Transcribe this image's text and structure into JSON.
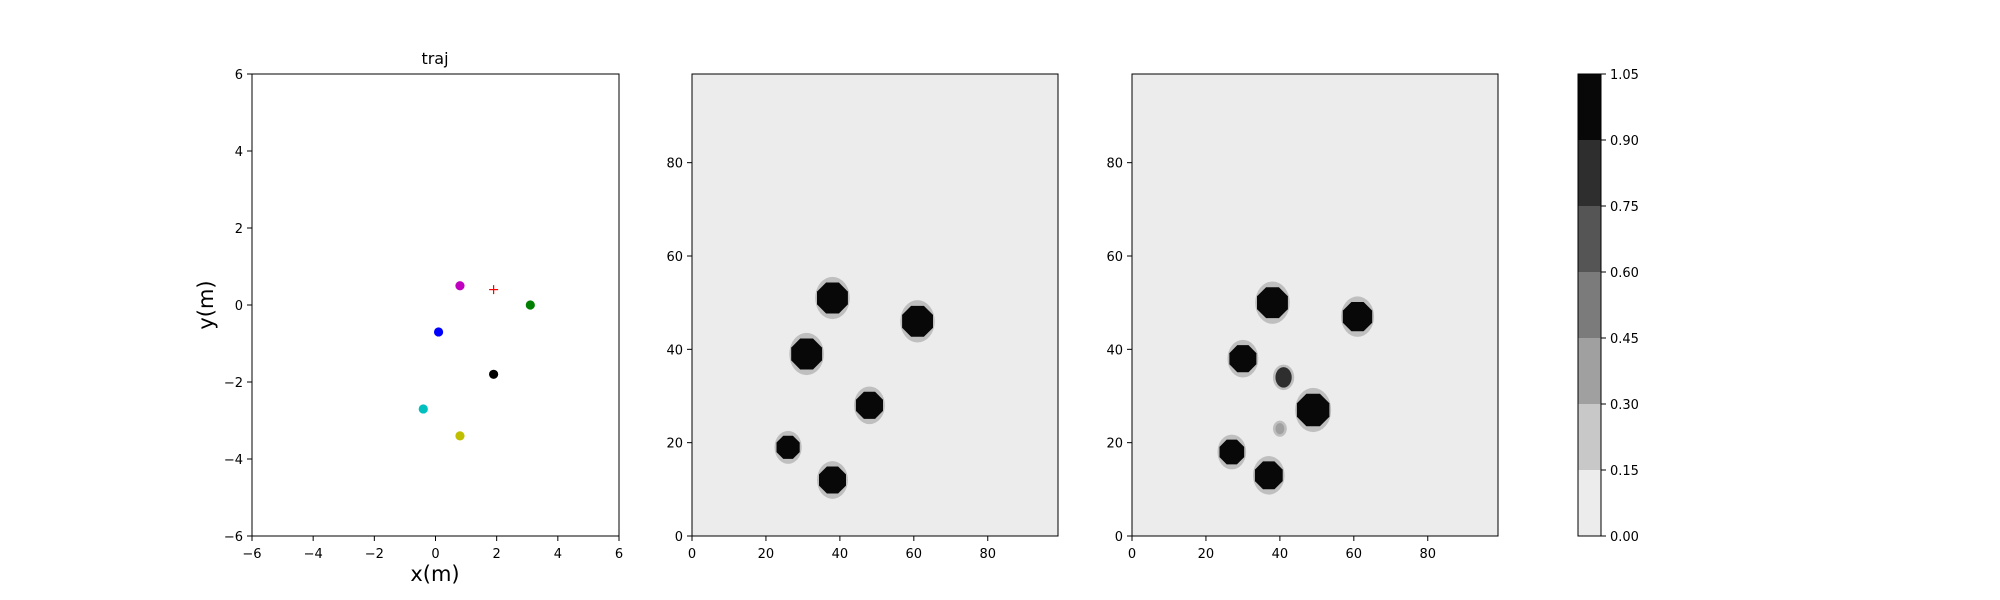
{
  "chart_data": [
    {
      "type": "scatter",
      "title": "traj",
      "xlabel": "x(m)",
      "ylabel": "y(m)",
      "xlim": [
        -6,
        6
      ],
      "ylim": [
        -6,
        6
      ],
      "xticks": [
        -6,
        -4,
        -2,
        0,
        2,
        4,
        6
      ],
      "yticks": [
        -6,
        -4,
        -2,
        0,
        2,
        4,
        6
      ],
      "grid": false,
      "points": [
        {
          "x": 0.8,
          "y": 0.5,
          "color": "#bf00bf",
          "marker": "circle"
        },
        {
          "x": 1.9,
          "y": 0.4,
          "color": "#ff0000",
          "marker": "plus"
        },
        {
          "x": 3.1,
          "y": 0.0,
          "color": "#007f00",
          "marker": "circle"
        },
        {
          "x": 0.1,
          "y": -0.7,
          "color": "#0000ff",
          "marker": "circle"
        },
        {
          "x": 1.9,
          "y": -1.8,
          "color": "#000000",
          "marker": "circle"
        },
        {
          "x": -0.4,
          "y": -2.7,
          "color": "#00bfbf",
          "marker": "circle"
        },
        {
          "x": 0.8,
          "y": -3.4,
          "color": "#bfbf00",
          "marker": "circle"
        }
      ]
    },
    {
      "type": "heatmap",
      "xlim": [
        0,
        99
      ],
      "ylim": [
        0,
        99
      ],
      "xticks": [
        0,
        20,
        40,
        60,
        80
      ],
      "yticks": [
        0,
        20,
        40,
        60,
        80
      ],
      "background_value": 0.0,
      "blobs": [
        {
          "x": 38,
          "y": 51,
          "r": 4.0,
          "value": 1.0
        },
        {
          "x": 61,
          "y": 46,
          "r": 4.0,
          "value": 1.0
        },
        {
          "x": 31,
          "y": 39,
          "r": 4.0,
          "value": 1.0
        },
        {
          "x": 48,
          "y": 28,
          "r": 3.5,
          "value": 1.0
        },
        {
          "x": 26,
          "y": 19,
          "r": 3.0,
          "value": 1.0
        },
        {
          "x": 38,
          "y": 12,
          "r": 3.5,
          "value": 1.0
        }
      ]
    },
    {
      "type": "heatmap",
      "xlim": [
        0,
        99
      ],
      "ylim": [
        0,
        99
      ],
      "xticks": [
        0,
        20,
        40,
        60,
        80
      ],
      "yticks": [
        0,
        20,
        40,
        60,
        80
      ],
      "background_value": 0.0,
      "blobs": [
        {
          "x": 38,
          "y": 50,
          "r": 4.0,
          "value": 1.0
        },
        {
          "x": 61,
          "y": 47,
          "r": 3.8,
          "value": 1.0
        },
        {
          "x": 30,
          "y": 38,
          "r": 3.5,
          "value": 1.0
        },
        {
          "x": 41,
          "y": 34,
          "r": 2.2,
          "value": 0.8
        },
        {
          "x": 49,
          "y": 27,
          "r": 4.2,
          "value": 1.0
        },
        {
          "x": 40,
          "y": 23,
          "r": 1.2,
          "value": 0.3
        },
        {
          "x": 27,
          "y": 18,
          "r": 3.2,
          "value": 1.0
        },
        {
          "x": 37,
          "y": 13,
          "r": 3.6,
          "value": 1.0
        }
      ]
    }
  ],
  "colorbar": {
    "levels": [
      0.0,
      0.15,
      0.3,
      0.45,
      0.6,
      0.75,
      0.9,
      1.05
    ],
    "tick_labels": [
      "0.00",
      "0.15",
      "0.30",
      "0.45",
      "0.60",
      "0.75",
      "0.90",
      "1.05"
    ],
    "colors": [
      "#ececec",
      "#c8c8c8",
      "#a0a0a0",
      "#7b7b7b",
      "#555555",
      "#2e2e2e",
      "#080808"
    ]
  }
}
